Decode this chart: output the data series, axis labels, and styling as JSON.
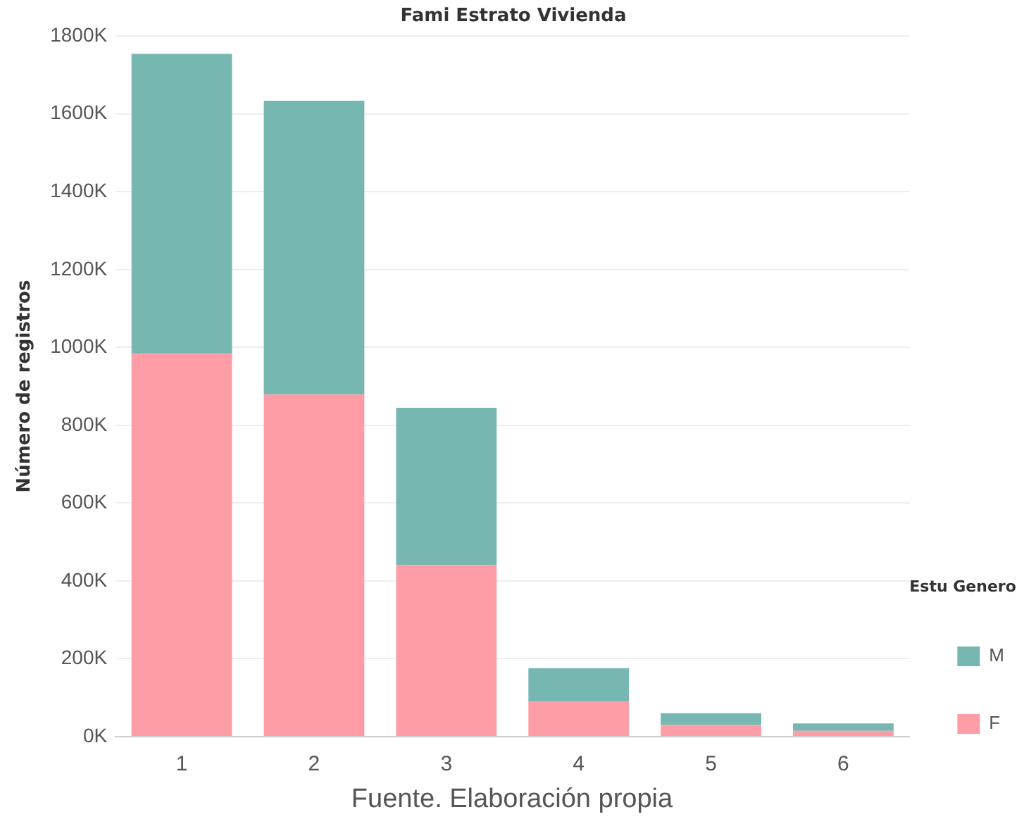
{
  "chart_data": {
    "type": "bar",
    "title": "Fami Estrato Vivienda",
    "ylabel": "Número de registros",
    "legend_title": "Estu Genero",
    "categories": [
      "1",
      "2",
      "3",
      "4",
      "5",
      "6"
    ],
    "stacked": true,
    "series": [
      {
        "name": "F",
        "color": "#ff9da7",
        "values": [
          984000,
          879000,
          441000,
          90000,
          30000,
          15000
        ]
      },
      {
        "name": "M",
        "color": "#76b7b2",
        "values": [
          770000,
          755000,
          404000,
          86000,
          30000,
          19000
        ]
      }
    ],
    "ylim": [
      0,
      1800000
    ],
    "yticks": [
      {
        "value": 0,
        "label": "0K"
      },
      {
        "value": 200000,
        "label": "200K"
      },
      {
        "value": 400000,
        "label": "400K"
      },
      {
        "value": 600000,
        "label": "600K"
      },
      {
        "value": 800000,
        "label": "800K"
      },
      {
        "value": 1000000,
        "label": "1000K"
      },
      {
        "value": 1200000,
        "label": "1200K"
      },
      {
        "value": 1400000,
        "label": "1400K"
      },
      {
        "value": 1600000,
        "label": "1600K"
      },
      {
        "value": 1800000,
        "label": "1800K"
      }
    ],
    "grid": "y",
    "legend": "right",
    "annotations": [
      "Fuente. Elaboración propia"
    ]
  }
}
